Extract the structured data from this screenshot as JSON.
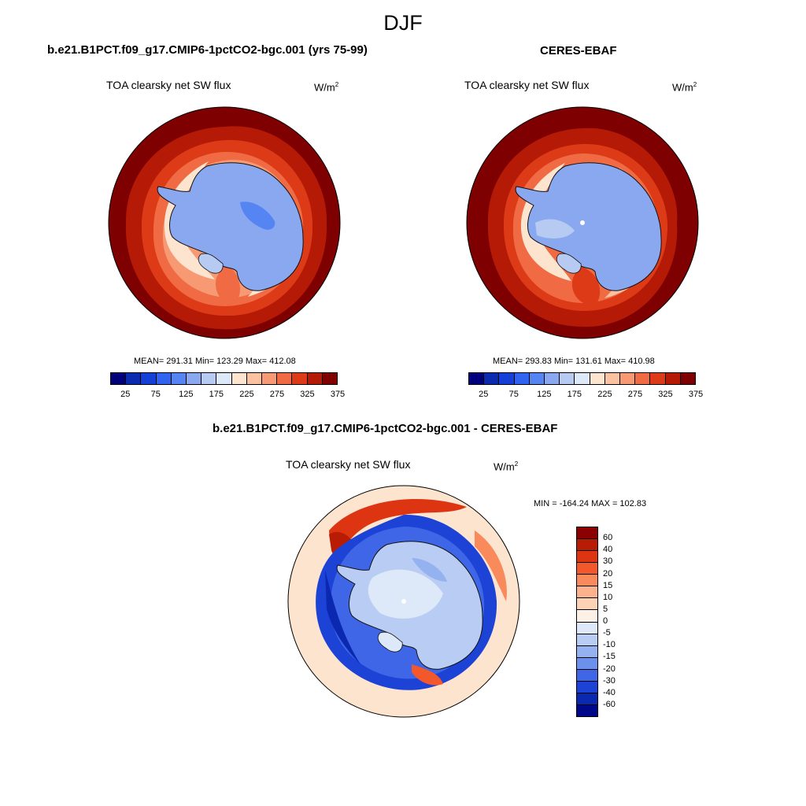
{
  "figure": {
    "season": "DJF"
  },
  "panels": [
    {
      "title": "b.e21.B1PCT.f09_g17.CMIP6-1pctCO2-bgc.001 (yrs 75-99)",
      "variable": "TOA clearsky net SW flux",
      "unit_base": "W/m",
      "unit_exp": "2",
      "stats": "MEAN= 291.31  Min= 123.29  Max= 412.08"
    },
    {
      "title": "CERES-EBAF",
      "variable": "TOA clearsky net SW flux",
      "unit_base": "W/m",
      "unit_exp": "2",
      "stats": "MEAN= 293.83  Min= 131.61  Max= 410.98"
    },
    {
      "title": "b.e21.B1PCT.f09_g17.CMIP6-1pctCO2-bgc.001 - CERES-EBAF",
      "variable": "TOA clearsky net SW flux",
      "unit_base": "W/m",
      "unit_exp": "2",
      "stats": "MIN = -164.24 MAX = 102.83"
    }
  ],
  "abs_colorbar": {
    "colors": [
      "#00007a",
      "#0a2bb0",
      "#1540d8",
      "#2f63f0",
      "#5585f2",
      "#8aa8f0",
      "#b7cbf2",
      "#dde8f8",
      "#fde4cf",
      "#fbc2a2",
      "#f79a74",
      "#f06b44",
      "#dd3a17",
      "#b51a06",
      "#7f0000"
    ],
    "labels": [
      "25",
      "75",
      "125",
      "175",
      "225",
      "275",
      "325",
      "375"
    ]
  },
  "diff_colorbar": {
    "colors": [
      "#8b0000",
      "#b81c05",
      "#dd3412",
      "#f2582b",
      "#f88a5c",
      "#fbb28d",
      "#fdd3b6",
      "#fdf0e6",
      "#dde8f8",
      "#b9cdf4",
      "#94b2f0",
      "#6b91ec",
      "#3f66e6",
      "#1d43d6",
      "#0b28b0",
      "#00088a"
    ],
    "labels": [
      "60",
      "40",
      "30",
      "20",
      "15",
      "10",
      "5",
      "0",
      "-5",
      "-10",
      "-15",
      "-20",
      "-30",
      "-40",
      "-60"
    ]
  }
}
